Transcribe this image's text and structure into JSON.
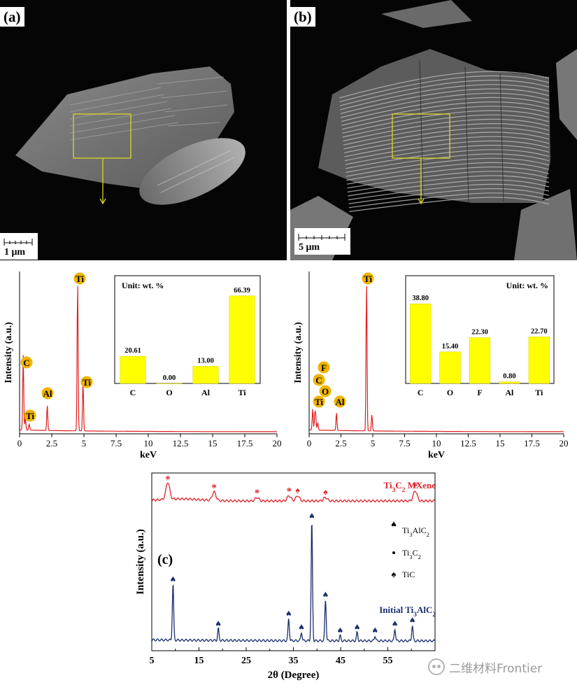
{
  "panels": {
    "a": {
      "label": "(a)",
      "scale": "1 μm"
    },
    "b": {
      "label": "(b)",
      "scale": "5 μm"
    },
    "c": {
      "label": "(c)"
    }
  },
  "colors": {
    "eds_line": "#e02020",
    "bar_fill": "#ffff00",
    "element_circle": "#f0b400",
    "mxene_line": "#e0242a",
    "initial_line": "#1c2f6e",
    "box_yellow": "#d8d820"
  },
  "chart_data": [
    {
      "id": "eds-a",
      "type": "line",
      "xlabel": "keV",
      "ylabel": "Intensity (a.u.)",
      "xlim": [
        0,
        20
      ],
      "xticks": [
        0,
        2.5,
        5,
        7.5,
        10,
        12.5,
        15,
        17.5,
        20
      ],
      "series": [
        {
          "peaks": [
            {
              "x": 0.28,
              "y": 0.5,
              "label": "C"
            },
            {
              "x": 0.45,
              "y": 0.08,
              "label": ""
            },
            {
              "x": 0.75,
              "y": 0.04,
              "label": "Ti"
            },
            {
              "x": 2.15,
              "y": 0.17,
              "label": "Al"
            },
            {
              "x": 4.51,
              "y": 1.0,
              "label": "Ti"
            },
            {
              "x": 4.93,
              "y": 0.33,
              "label": "Ti"
            }
          ]
        }
      ],
      "inset": {
        "title": "Unit: wt. %",
        "type": "bar",
        "categories": [
          "C",
          "O",
          "Al",
          "Ti"
        ],
        "values": [
          20.61,
          0.0,
          13.0,
          66.39
        ],
        "value_labels": [
          "20.61",
          "0.00",
          "13.00",
          "66.39"
        ],
        "ylim": [
          0,
          70
        ]
      }
    },
    {
      "id": "eds-b",
      "type": "line",
      "xlabel": "keV",
      "ylabel": "Intensity (a.u.)",
      "xlim": [
        0,
        20
      ],
      "xticks": [
        0,
        2.5,
        5,
        7.5,
        10,
        12.5,
        15,
        17.5,
        20
      ],
      "series": [
        {
          "peaks": [
            {
              "x": 0.28,
              "y": 0.14,
              "label": "C"
            },
            {
              "x": 0.45,
              "y": 0.11,
              "label": "Ti"
            },
            {
              "x": 0.52,
              "y": 0.08,
              "label": "O"
            },
            {
              "x": 0.68,
              "y": 0.05,
              "label": "F"
            },
            {
              "x": 2.15,
              "y": 0.12,
              "label": "Al"
            },
            {
              "x": 4.51,
              "y": 1.0,
              "label": "Ti"
            },
            {
              "x": 4.93,
              "y": 0.11,
              "label": ""
            }
          ]
        }
      ],
      "inset": {
        "title": "Unit: wt. %",
        "type": "bar",
        "categories": [
          "C",
          "O",
          "F",
          "Al",
          "Ti"
        ],
        "values": [
          38.8,
          15.4,
          22.3,
          0.8,
          22.7
        ],
        "value_labels": [
          "38.80",
          "15.40",
          "22.30",
          "0.80",
          "22.70"
        ],
        "ylim": [
          0,
          45
        ]
      }
    },
    {
      "id": "xrd",
      "type": "line",
      "xlabel": "2θ (Degree)",
      "ylabel": "Intensity (a.u.)",
      "xlim": [
        5,
        65
      ],
      "xticks": [
        5,
        15,
        25,
        35,
        45,
        55
      ],
      "legend": [
        {
          "symbol": "heart",
          "label": "Ti3AlC2"
        },
        {
          "symbol": "dot",
          "label": "Ti3C2"
        },
        {
          "symbol": "spade",
          "label": "TiC"
        }
      ],
      "series": [
        {
          "name": "Ti3C2 MXene",
          "offset": 0.82,
          "peaks": [
            {
              "x": 8.4,
              "y": 0.1,
              "marker": "*"
            },
            {
              "x": 18.2,
              "y": 0.05,
              "marker": "*"
            },
            {
              "x": 27.3,
              "y": 0.02,
              "marker": "*"
            },
            {
              "x": 34.1,
              "y": 0.03,
              "marker": "*"
            },
            {
              "x": 35.9,
              "y": 0.03,
              "marker": "spade"
            },
            {
              "x": 41.8,
              "y": 0.02,
              "marker": "spade"
            },
            {
              "x": 60.8,
              "y": 0.06,
              "marker": "*"
            }
          ]
        },
        {
          "name": "Initial Ti3AlC2",
          "offset": 0.0,
          "peaks": [
            {
              "x": 9.5,
              "y": 0.33,
              "marker": "heart"
            },
            {
              "x": 19.1,
              "y": 0.07,
              "marker": "heart"
            },
            {
              "x": 34.0,
              "y": 0.13,
              "marker": "heart"
            },
            {
              "x": 36.7,
              "y": 0.05,
              "marker": "heart"
            },
            {
              "x": 38.9,
              "y": 0.7,
              "marker": "heart"
            },
            {
              "x": 41.8,
              "y": 0.24,
              "marker": "heart"
            },
            {
              "x": 44.9,
              "y": 0.03,
              "marker": "heart"
            },
            {
              "x": 48.5,
              "y": 0.05,
              "marker": "heart"
            },
            {
              "x": 52.3,
              "y": 0.03,
              "marker": "heart"
            },
            {
              "x": 56.5,
              "y": 0.07,
              "marker": "heart"
            },
            {
              "x": 60.2,
              "y": 0.09,
              "marker": "heart"
            }
          ]
        }
      ]
    }
  ],
  "watermark": {
    "text": "二维材料Frontier",
    "icon": "wechat-icon"
  }
}
